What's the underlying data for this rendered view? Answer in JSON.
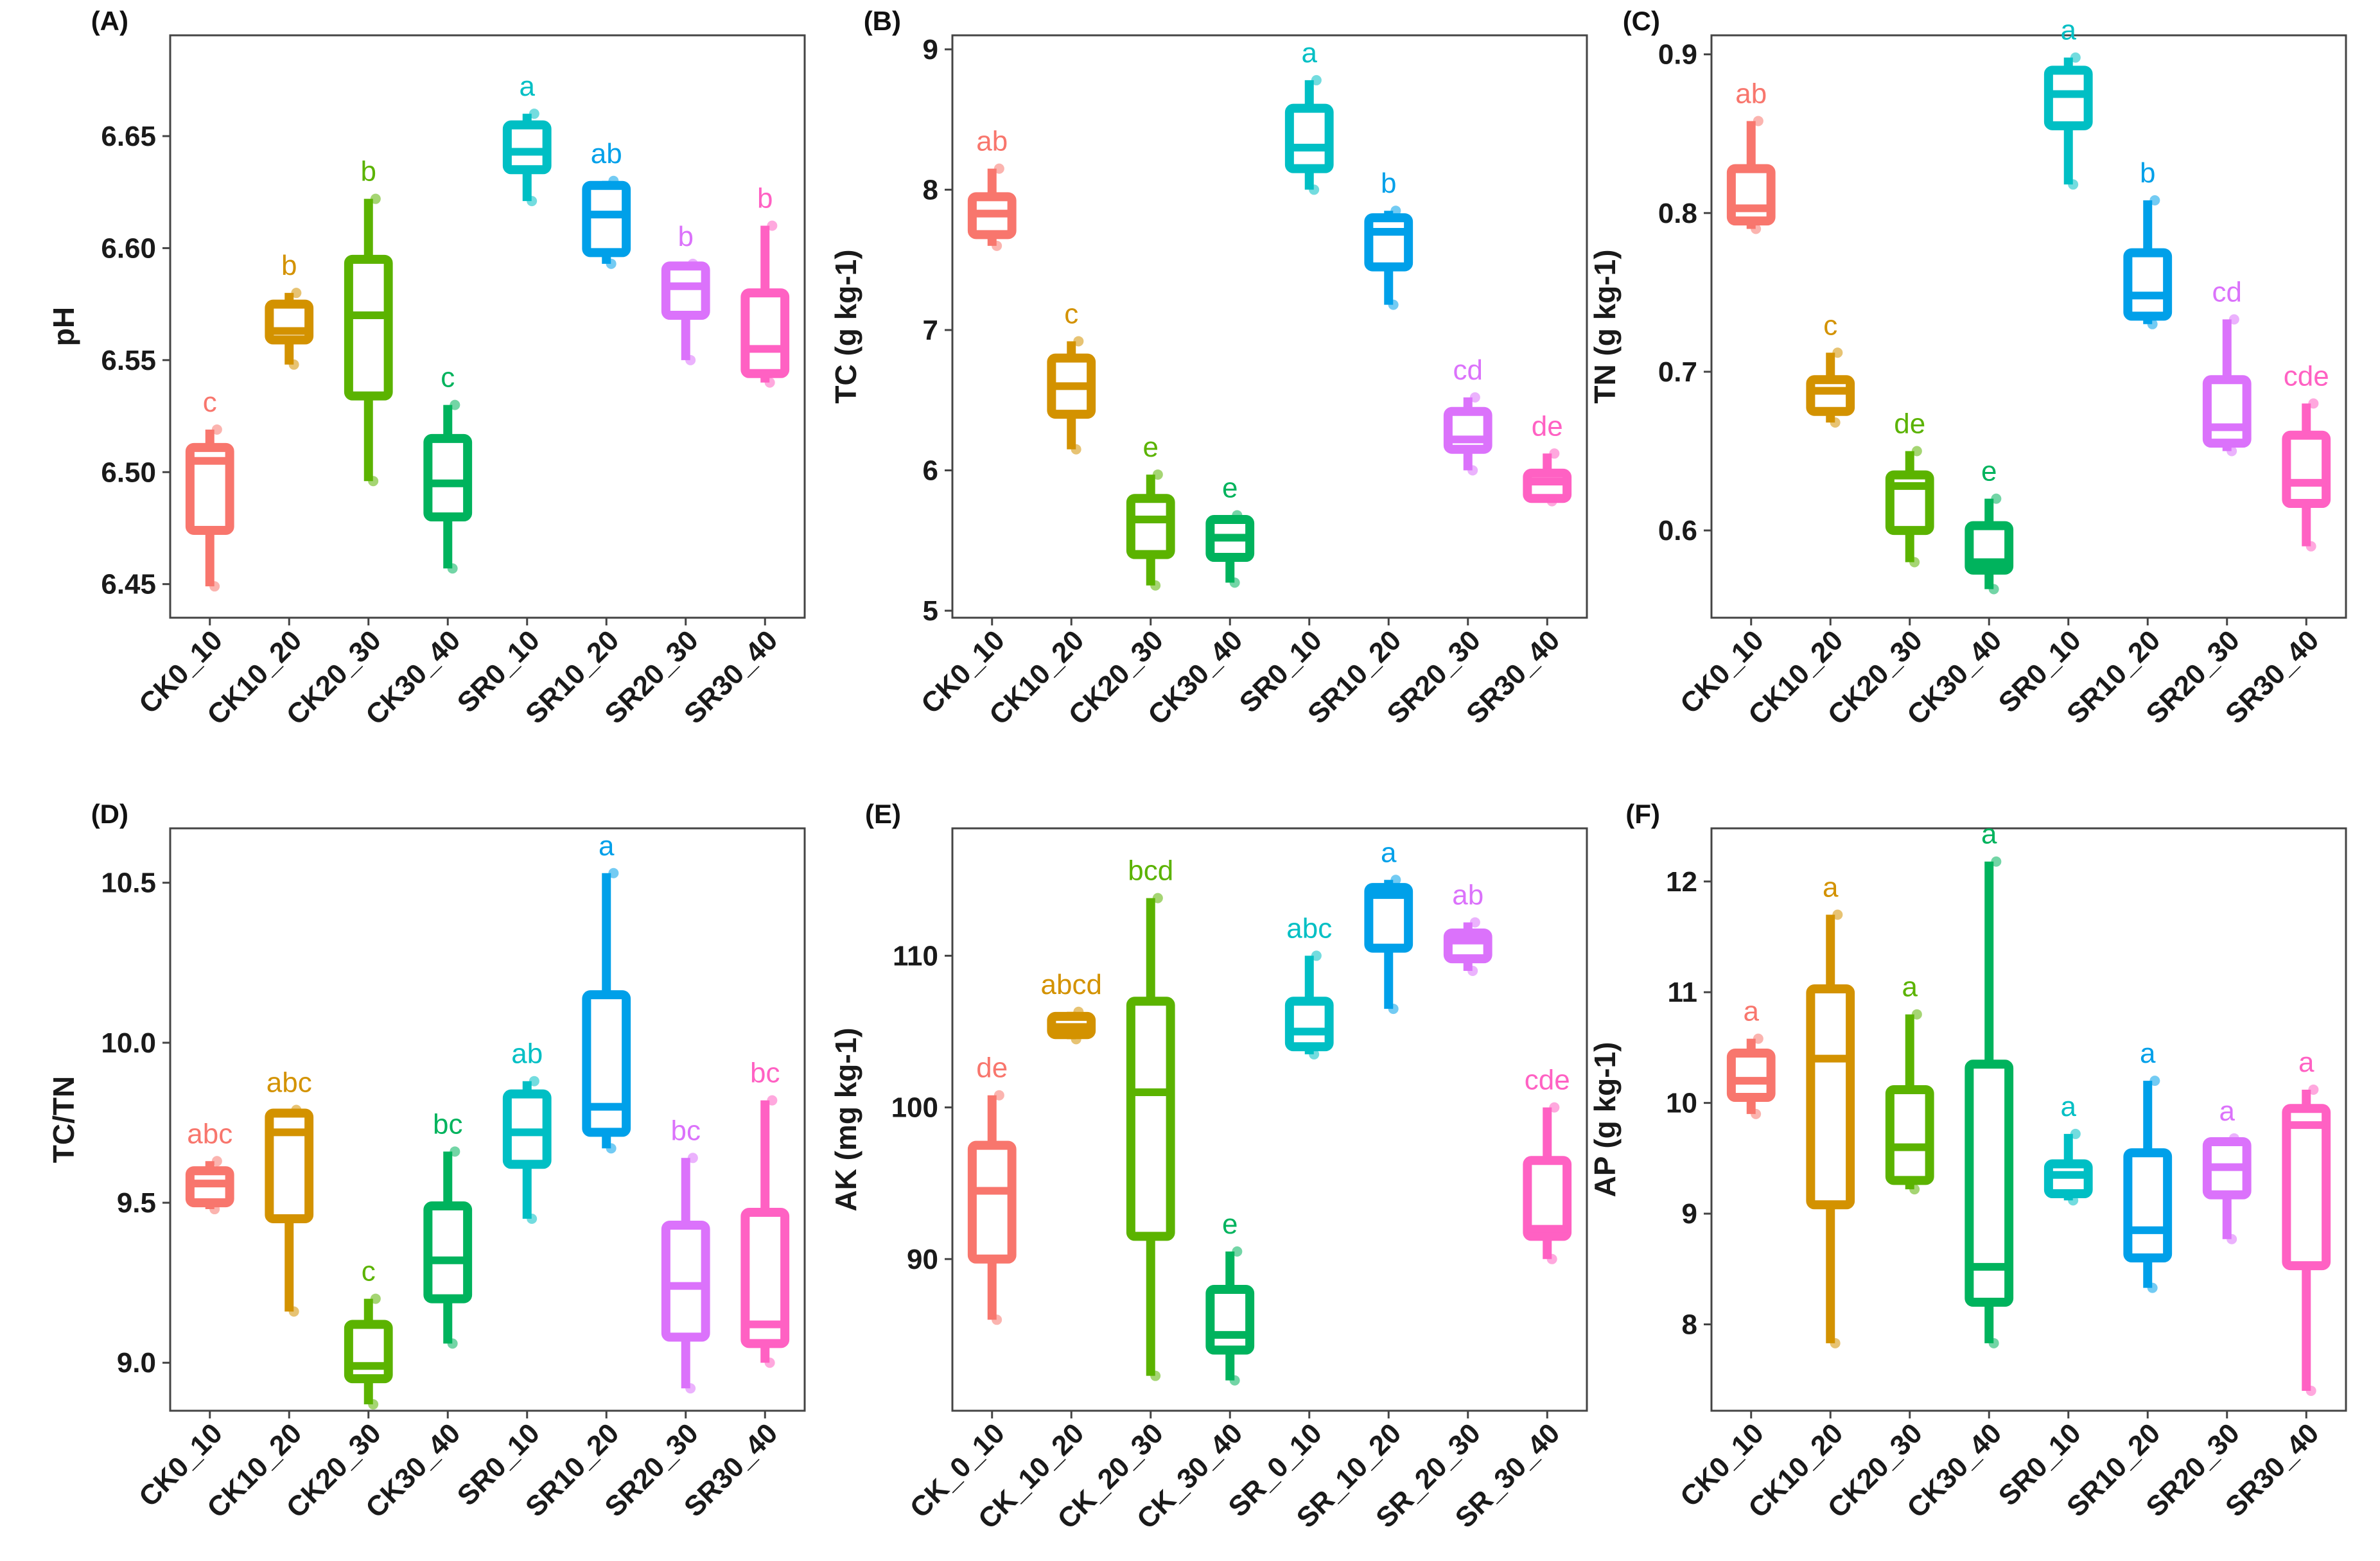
{
  "figure": {
    "colors": [
      "#F8766D",
      "#D39200",
      "#5BB300",
      "#00B35D",
      "#00BFC4",
      "#00A0E9",
      "#DB72FB",
      "#FF61C3"
    ]
  },
  "chart_data": [
    {
      "type": "box",
      "panel_label": "(A)",
      "ylabel": "pH",
      "ylim": [
        6.435,
        6.695
      ],
      "yticks": [
        6.45,
        6.5,
        6.55,
        6.6,
        6.65
      ],
      "ytick_labels": [
        "6.45",
        "6.50",
        "6.55",
        "6.60",
        "6.65"
      ],
      "categories": [
        "CK0_10",
        "CK10_20",
        "CK20_30",
        "CK30_40",
        "SR0_10",
        "SR10_20",
        "SR20_30",
        "SR30_40"
      ],
      "boxes": [
        {
          "min": 6.449,
          "q1": 6.474,
          "median": 6.505,
          "q3": 6.511,
          "max": 6.519,
          "letter": "c"
        },
        {
          "min": 6.548,
          "q1": 6.559,
          "median": 6.563,
          "q3": 6.575,
          "max": 6.58,
          "letter": "b"
        },
        {
          "min": 6.496,
          "q1": 6.534,
          "median": 6.57,
          "q3": 6.595,
          "max": 6.622,
          "letter": "b"
        },
        {
          "min": 6.457,
          "q1": 6.48,
          "median": 6.495,
          "q3": 6.515,
          "max": 6.53,
          "letter": "c"
        },
        {
          "min": 6.621,
          "q1": 6.635,
          "median": 6.643,
          "q3": 6.655,
          "max": 6.66,
          "letter": "a"
        },
        {
          "min": 6.593,
          "q1": 6.598,
          "median": 6.615,
          "q3": 6.628,
          "max": 6.63,
          "letter": "ab"
        },
        {
          "min": 6.55,
          "q1": 6.57,
          "median": 6.583,
          "q3": 6.592,
          "max": 6.593,
          "letter": "b"
        },
        {
          "min": 6.54,
          "q1": 6.544,
          "median": 6.555,
          "q3": 6.58,
          "max": 6.61,
          "letter": "b"
        }
      ]
    },
    {
      "type": "box",
      "panel_label": "(B)",
      "ylabel": "TC (g kg-1)",
      "ylim": [
        4.95,
        9.1
      ],
      "yticks": [
        5,
        6,
        7,
        8,
        9
      ],
      "ytick_labels": [
        "5",
        "6",
        "7",
        "8",
        "9"
      ],
      "categories": [
        "CK0_10",
        "CK10_20",
        "CK20_30",
        "CK30_40",
        "SR0_10",
        "SR10_20",
        "SR20_30",
        "SR30_40"
      ],
      "boxes": [
        {
          "min": 7.6,
          "q1": 7.68,
          "median": 7.83,
          "q3": 7.95,
          "max": 8.15,
          "letter": "ab"
        },
        {
          "min": 6.15,
          "q1": 6.4,
          "median": 6.6,
          "q3": 6.8,
          "max": 6.92,
          "letter": "c"
        },
        {
          "min": 5.18,
          "q1": 5.4,
          "median": 5.65,
          "q3": 5.8,
          "max": 5.97,
          "letter": "e"
        },
        {
          "min": 5.2,
          "q1": 5.38,
          "median": 5.52,
          "q3": 5.65,
          "max": 5.68,
          "letter": "e"
        },
        {
          "min": 8.0,
          "q1": 8.15,
          "median": 8.3,
          "q3": 8.58,
          "max": 8.78,
          "letter": "a"
        },
        {
          "min": 7.18,
          "q1": 7.45,
          "median": 7.7,
          "q3": 7.8,
          "max": 7.85,
          "letter": "b"
        },
        {
          "min": 6.0,
          "q1": 6.15,
          "median": 6.22,
          "q3": 6.42,
          "max": 6.52,
          "letter": "cd"
        },
        {
          "min": 5.78,
          "q1": 5.8,
          "median": 5.92,
          "q3": 5.98,
          "max": 6.12,
          "letter": "de"
        }
      ]
    },
    {
      "type": "box",
      "panel_label": "(C)",
      "ylabel": "TN (g kg-1)",
      "ylim": [
        0.545,
        0.912
      ],
      "yticks": [
        0.6,
        0.7,
        0.8,
        0.9
      ],
      "ytick_labels": [
        "0.6",
        "0.7",
        "0.8",
        "0.9"
      ],
      "categories": [
        "CK0_10",
        "CK10_20",
        "CK20_30",
        "CK30_40",
        "SR0_10",
        "SR10_20",
        "SR20_30",
        "SR30_40"
      ],
      "boxes": [
        {
          "min": 0.79,
          "q1": 0.795,
          "median": 0.803,
          "q3": 0.828,
          "max": 0.858,
          "letter": "ab"
        },
        {
          "min": 0.668,
          "q1": 0.675,
          "median": 0.688,
          "q3": 0.695,
          "max": 0.712,
          "letter": "c"
        },
        {
          "min": 0.58,
          "q1": 0.6,
          "median": 0.628,
          "q3": 0.635,
          "max": 0.65,
          "letter": "de"
        },
        {
          "min": 0.563,
          "q1": 0.575,
          "median": 0.58,
          "q3": 0.603,
          "max": 0.62,
          "letter": "e"
        },
        {
          "min": 0.818,
          "q1": 0.855,
          "median": 0.875,
          "q3": 0.89,
          "max": 0.898,
          "letter": "a"
        },
        {
          "min": 0.73,
          "q1": 0.735,
          "median": 0.748,
          "q3": 0.775,
          "max": 0.808,
          "letter": "b"
        },
        {
          "min": 0.65,
          "q1": 0.655,
          "median": 0.665,
          "q3": 0.695,
          "max": 0.733,
          "letter": "cd"
        },
        {
          "min": 0.59,
          "q1": 0.617,
          "median": 0.63,
          "q3": 0.66,
          "max": 0.68,
          "letter": "cde"
        }
      ]
    },
    {
      "type": "box",
      "panel_label": "(D)",
      "ylabel": "TC/TN",
      "ylim": [
        8.85,
        10.67
      ],
      "yticks": [
        9.0,
        9.5,
        10.0,
        10.5
      ],
      "ytick_labels": [
        "9.0",
        "9.5",
        "10.0",
        "10.5"
      ],
      "categories": [
        "CK0_10",
        "CK10_20",
        "CK20_30",
        "CK30_40",
        "SR0_10",
        "SR10_20",
        "SR20_30",
        "SR30_40"
      ],
      "boxes": [
        {
          "min": 9.48,
          "q1": 9.5,
          "median": 9.56,
          "q3": 9.6,
          "max": 9.63,
          "letter": "abc"
        },
        {
          "min": 9.16,
          "q1": 9.45,
          "median": 9.72,
          "q3": 9.78,
          "max": 9.79,
          "letter": "abc"
        },
        {
          "min": 8.87,
          "q1": 8.95,
          "median": 8.99,
          "q3": 9.12,
          "max": 9.2,
          "letter": "c"
        },
        {
          "min": 9.06,
          "q1": 9.2,
          "median": 9.32,
          "q3": 9.49,
          "max": 9.66,
          "letter": "bc"
        },
        {
          "min": 9.45,
          "q1": 9.62,
          "median": 9.72,
          "q3": 9.84,
          "max": 9.88,
          "letter": "ab"
        },
        {
          "min": 9.67,
          "q1": 9.72,
          "median": 9.8,
          "q3": 10.15,
          "max": 10.53,
          "letter": "a"
        },
        {
          "min": 8.92,
          "q1": 9.08,
          "median": 9.24,
          "q3": 9.43,
          "max": 9.64,
          "letter": "bc"
        },
        {
          "min": 9.0,
          "q1": 9.06,
          "median": 9.12,
          "q3": 9.47,
          "max": 9.82,
          "letter": "bc"
        }
      ]
    },
    {
      "type": "box",
      "panel_label": "(E)",
      "ylabel": "AK (mg kg-1)",
      "ylim": [
        80.0,
        118.4
      ],
      "yticks": [
        90,
        100,
        110
      ],
      "ytick_labels": [
        "90",
        "100",
        "110"
      ],
      "categories": [
        "CK_0_10",
        "CK_10_20",
        "CK_20_30",
        "CK_30_40",
        "SR_0_10",
        "SR_10_20",
        "SR_20_30",
        "SR_30_40"
      ],
      "boxes": [
        {
          "min": 86.0,
          "q1": 90.0,
          "median": 94.5,
          "q3": 97.5,
          "max": 100.8,
          "letter": "de"
        },
        {
          "min": 104.5,
          "q1": 104.8,
          "median": 105.3,
          "q3": 106.0,
          "max": 106.3,
          "letter": "abcd"
        },
        {
          "min": 82.3,
          "q1": 91.5,
          "median": 101.0,
          "q3": 107.0,
          "max": 113.8,
          "letter": "bcd"
        },
        {
          "min": 82.0,
          "q1": 84.0,
          "median": 85.0,
          "q3": 88.0,
          "max": 90.5,
          "letter": "e"
        },
        {
          "min": 103.5,
          "q1": 104.0,
          "median": 105.0,
          "q3": 107.0,
          "max": 110.0,
          "letter": "abc"
        },
        {
          "min": 106.5,
          "q1": 110.5,
          "median": 114.0,
          "q3": 114.5,
          "max": 115.0,
          "letter": "a"
        },
        {
          "min": 109.0,
          "q1": 109.8,
          "median": 111.0,
          "q3": 111.5,
          "max": 112.2,
          "letter": "ab"
        },
        {
          "min": 90.0,
          "q1": 91.5,
          "median": 92.0,
          "q3": 96.5,
          "max": 100.0,
          "letter": "cde"
        }
      ]
    },
    {
      "type": "box",
      "panel_label": "(F)",
      "ylabel": "AP (g kg-1)",
      "ylim": [
        7.22,
        12.48
      ],
      "yticks": [
        8,
        9,
        10,
        11,
        12
      ],
      "ytick_labels": [
        "8",
        "9",
        "10",
        "11",
        "12"
      ],
      "categories": [
        "CK0_10",
        "CK10_20",
        "CK20_30",
        "CK30_40",
        "SR0_10",
        "SR10_20",
        "SR20_30",
        "SR30_40"
      ],
      "boxes": [
        {
          "min": 9.9,
          "q1": 10.05,
          "median": 10.2,
          "q3": 10.45,
          "max": 10.58,
          "letter": "a"
        },
        {
          "min": 7.83,
          "q1": 9.08,
          "median": 10.4,
          "q3": 11.03,
          "max": 11.7,
          "letter": "a"
        },
        {
          "min": 9.22,
          "q1": 9.3,
          "median": 9.6,
          "q3": 10.12,
          "max": 10.8,
          "letter": "a"
        },
        {
          "min": 7.83,
          "q1": 8.2,
          "median": 8.52,
          "q3": 10.35,
          "max": 12.18,
          "letter": "a"
        },
        {
          "min": 9.12,
          "q1": 9.18,
          "median": 9.35,
          "q3": 9.45,
          "max": 9.72,
          "letter": "a"
        },
        {
          "min": 8.33,
          "q1": 8.6,
          "median": 8.85,
          "q3": 9.55,
          "max": 10.2,
          "letter": "a"
        },
        {
          "min": 8.77,
          "q1": 9.17,
          "median": 9.42,
          "q3": 9.65,
          "max": 9.68,
          "letter": "a"
        },
        {
          "min": 7.4,
          "q1": 8.53,
          "median": 9.8,
          "q3": 9.95,
          "max": 10.12,
          "letter": "a"
        }
      ]
    }
  ]
}
